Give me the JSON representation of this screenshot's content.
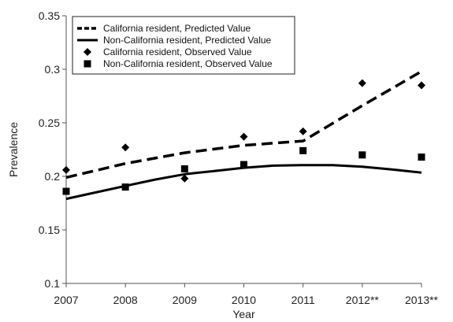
{
  "chart_data": {
    "type": "line",
    "xlabel": "Year",
    "ylabel": "Prevalence",
    "categories": [
      "2007",
      "2008",
      "2009",
      "2010",
      "2011",
      "2012**",
      "2013**"
    ],
    "ylim": [
      0.1,
      0.35
    ],
    "yticks": [
      0.1,
      0.15,
      0.2,
      0.25,
      0.3,
      0.35
    ],
    "ytick_labels": [
      "0.1",
      "0.15",
      "0.2",
      "0.25",
      "0.3",
      "0.35"
    ],
    "grid": false,
    "legend_position": "top-left",
    "series": [
      {
        "name": "California resident, Predicted Value",
        "kind": "line",
        "style": "dashed",
        "color": "#000000",
        "x": [
          2007,
          2008,
          2009,
          2010,
          2011,
          2012,
          2013
        ],
        "values": [
          0.199,
          0.212,
          0.222,
          0.229,
          0.233,
          0.266,
          0.298
        ]
      },
      {
        "name": "Non-California resident, Predicted Value",
        "kind": "line",
        "style": "solid",
        "color": "#000000",
        "x": [
          2007,
          2007.5,
          2008,
          2008.5,
          2009,
          2009.5,
          2010,
          2010.5,
          2011,
          2011.5,
          2012,
          2012.5,
          2013
        ],
        "values": [
          0.179,
          0.185,
          0.191,
          0.197,
          0.202,
          0.205,
          0.208,
          0.21,
          0.2105,
          0.2105,
          0.209,
          0.2065,
          0.2035
        ]
      },
      {
        "name": "California resident, Observed Value",
        "kind": "scatter",
        "marker": "diamond",
        "color": "#000000",
        "x": [
          2007,
          2008,
          2009,
          2010,
          2011,
          2012,
          2013
        ],
        "values": [
          0.206,
          0.227,
          0.198,
          0.237,
          0.242,
          0.287,
          0.285
        ]
      },
      {
        "name": "Non-California resident, Observed Value",
        "kind": "scatter",
        "marker": "square",
        "color": "#000000",
        "x": [
          2007,
          2008,
          2009,
          2010,
          2011,
          2012,
          2013
        ],
        "values": [
          0.186,
          0.19,
          0.207,
          0.211,
          0.224,
          0.22,
          0.218
        ]
      }
    ]
  }
}
